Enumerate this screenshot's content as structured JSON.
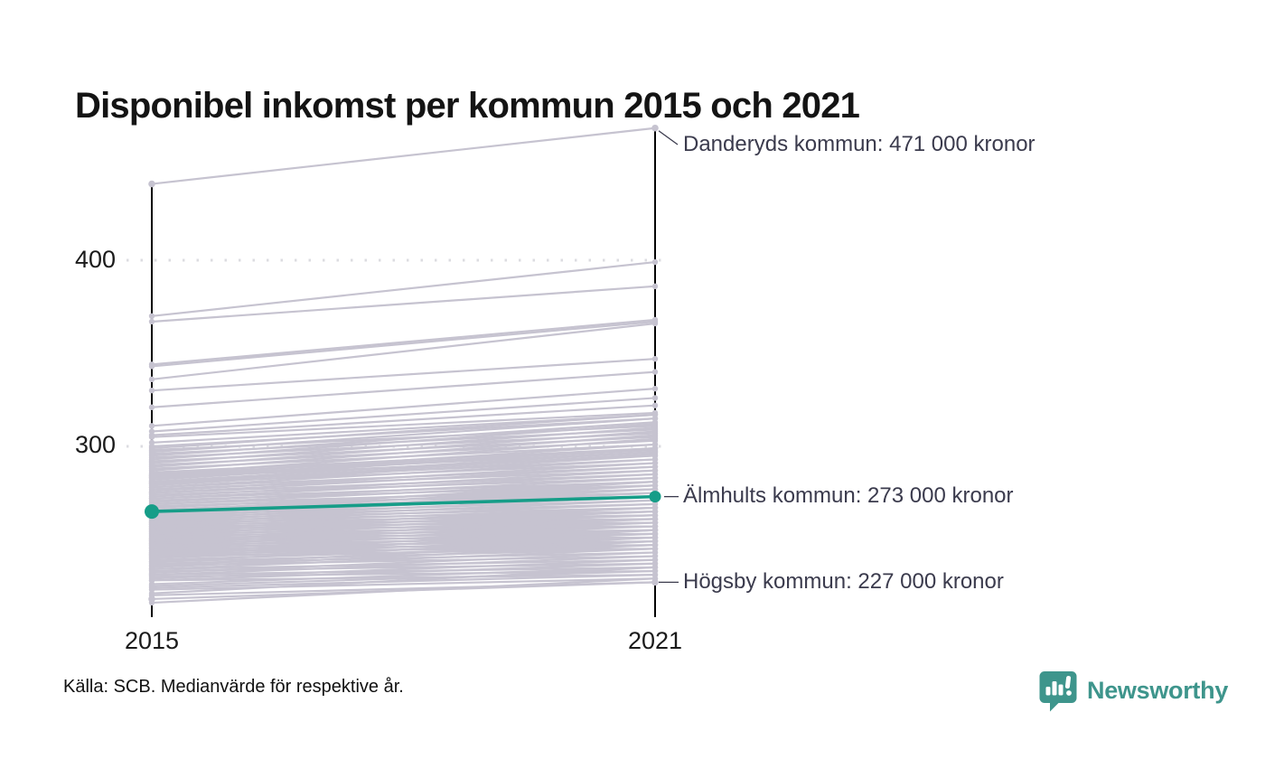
{
  "title": "Disponibel inkomst per kommun 2015 och 2021",
  "source": "Källa: SCB. Medianvärde för respektive år.",
  "branding": {
    "name": "Newsworthy"
  },
  "colors": {
    "background_line": "#c6c3d0",
    "highlight": "#169d88",
    "axis": "#000000",
    "grid_dots": "#dcdce1",
    "annotation_text": "#3b3b4d",
    "brand": "#3e958c"
  },
  "chart_data": {
    "type": "line",
    "subtype": "slopegraph",
    "title": "Disponibel inkomst per kommun 2015 och 2021",
    "unit": "tusen kronor (medianvärde, disponibel inkomst)",
    "x_tick_labels": [
      "2015",
      "2021"
    ],
    "y_tick_labels": [
      "400",
      "300"
    ],
    "y_ticks": [
      400,
      300
    ],
    "y_range_shown": [
      208,
      471
    ],
    "grid": "dotted horizontal lines at 300 and 400",
    "legend_position": "none",
    "annotations": [
      {
        "name": "Danderyds kommun",
        "label": "Danderyds kommun: 471 000 kronor",
        "values": [
          441,
          471
        ],
        "highlighted": false
      },
      {
        "name": "Älmhults kommun",
        "label": "Älmhults kommun: 273 000 kronor",
        "values": [
          265,
          273
        ],
        "highlighted": true
      },
      {
        "name": "Högsby kommun",
        "label": "Högsby kommun: 227 000 kronor",
        "values": [
          218,
          227
        ],
        "highlighted": false
      }
    ],
    "background_series_note": "unlabeled municipality lines, values estimated from pixels [2015, 2021] in thousands of kronor",
    "background_series": [
      [
        370,
        399
      ],
      [
        367,
        386
      ],
      [
        344,
        368
      ],
      [
        343,
        367
      ],
      [
        336,
        366
      ],
      [
        330,
        347
      ],
      [
        321,
        340
      ],
      [
        311,
        331
      ],
      [
        308,
        326
      ],
      [
        306,
        322
      ],
      [
        305,
        318
      ],
      [
        302,
        317
      ],
      [
        300,
        315
      ],
      [
        299,
        317
      ],
      [
        298,
        311
      ],
      [
        297,
        315
      ],
      [
        296,
        309
      ],
      [
        295,
        313
      ],
      [
        294,
        307
      ],
      [
        293,
        312
      ],
      [
        292,
        305
      ],
      [
        291,
        310
      ],
      [
        290,
        303
      ],
      [
        289,
        308
      ],
      [
        288,
        301
      ],
      [
        287,
        306
      ],
      [
        286,
        299
      ],
      [
        285,
        304
      ],
      [
        285,
        298
      ],
      [
        284,
        301
      ],
      [
        284,
        297
      ],
      [
        283,
        299
      ],
      [
        283,
        295
      ],
      [
        282,
        299
      ],
      [
        281,
        297
      ],
      [
        281,
        293
      ],
      [
        280,
        296
      ],
      [
        280,
        291
      ],
      [
        279,
        295
      ],
      [
        278,
        293
      ],
      [
        278,
        289
      ],
      [
        277,
        287
      ],
      [
        276,
        291
      ],
      [
        275,
        289
      ],
      [
        275,
        285
      ],
      [
        274,
        283
      ],
      [
        273,
        287
      ],
      [
        272,
        285
      ],
      [
        272,
        281
      ],
      [
        271,
        279
      ],
      [
        270,
        283
      ],
      [
        269,
        281
      ],
      [
        269,
        277
      ],
      [
        268,
        275
      ],
      [
        267,
        279
      ],
      [
        266,
        277
      ],
      [
        266,
        273
      ],
      [
        265,
        281
      ],
      [
        265,
        275
      ],
      [
        264,
        279
      ],
      [
        264,
        273
      ],
      [
        263,
        277
      ],
      [
        263,
        271
      ],
      [
        262,
        275
      ],
      [
        262,
        269
      ],
      [
        261,
        273
      ],
      [
        261,
        267
      ],
      [
        260,
        271
      ],
      [
        260,
        265
      ],
      [
        259,
        269
      ],
      [
        259,
        263
      ],
      [
        258,
        267
      ],
      [
        258,
        261
      ],
      [
        257,
        265
      ],
      [
        257,
        259
      ],
      [
        256,
        263
      ],
      [
        256,
        257
      ],
      [
        255,
        267
      ],
      [
        255,
        261
      ],
      [
        254,
        265
      ],
      [
        254,
        259
      ],
      [
        253,
        263
      ],
      [
        253,
        257
      ],
      [
        252,
        261
      ],
      [
        252,
        255
      ],
      [
        251,
        259
      ],
      [
        251,
        253
      ],
      [
        250,
        257
      ],
      [
        250,
        251
      ],
      [
        249,
        261
      ],
      [
        249,
        255
      ],
      [
        248,
        259
      ],
      [
        248,
        253
      ],
      [
        247,
        257
      ],
      [
        247,
        251
      ],
      [
        246,
        255
      ],
      [
        246,
        249
      ],
      [
        245,
        253
      ],
      [
        245,
        247
      ],
      [
        244,
        251
      ],
      [
        244,
        245
      ],
      [
        243,
        255
      ],
      [
        243,
        249
      ],
      [
        242,
        253
      ],
      [
        242,
        247
      ],
      [
        241,
        251
      ],
      [
        241,
        245
      ],
      [
        240,
        255
      ],
      [
        240,
        249
      ],
      [
        239,
        247
      ],
      [
        238,
        251
      ],
      [
        238,
        245
      ],
      [
        237,
        243
      ],
      [
        236,
        249
      ],
      [
        236,
        241
      ],
      [
        235,
        247
      ],
      [
        234,
        245
      ],
      [
        234,
        239
      ],
      [
        233,
        237
      ],
      [
        232,
        243
      ],
      [
        231,
        241
      ],
      [
        231,
        235
      ],
      [
        230,
        233
      ],
      [
        229,
        239
      ],
      [
        228,
        237
      ],
      [
        228,
        231
      ],
      [
        226,
        235
      ],
      [
        225,
        233
      ],
      [
        224,
        231
      ],
      [
        223,
        229
      ],
      [
        221,
        235
      ],
      [
        220,
        227
      ],
      [
        216,
        229
      ]
    ]
  }
}
